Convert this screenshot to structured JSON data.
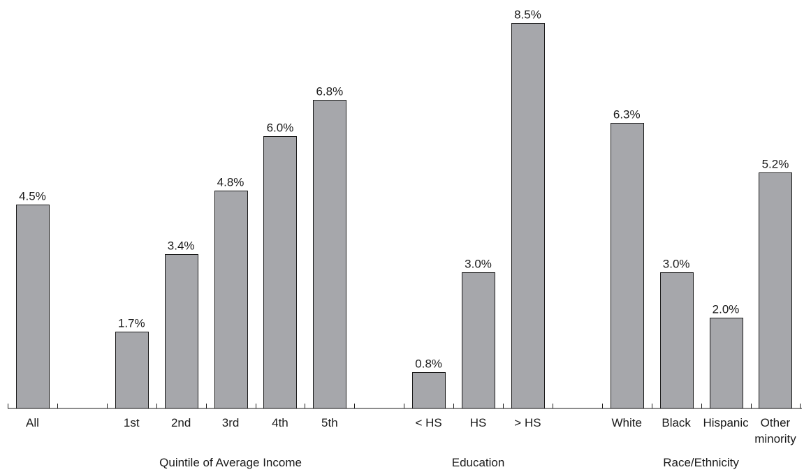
{
  "chart_data": {
    "type": "bar",
    "title": "",
    "xlabel": "",
    "ylabel": "",
    "ylim": [
      0,
      8.8
    ],
    "grid": false,
    "bar_color": "#a6a7ab",
    "bar_edge_color": "#1a1a1a",
    "value_format": "percent_1dp",
    "slots": [
      "All",
      "",
      "1st",
      "2nd",
      "3rd",
      "4th",
      "5th",
      "",
      "< HS",
      "HS",
      "> HS",
      "",
      "White",
      "Black",
      "Hispanic",
      "Other minority"
    ],
    "bars": [
      {
        "slot": 0,
        "category": "All",
        "tick_label": [
          "All"
        ],
        "value": 4.5,
        "label": "4.5%"
      },
      {
        "slot": 2,
        "category": "1st",
        "tick_label": [
          "1st"
        ],
        "value": 1.7,
        "label": "1.7%"
      },
      {
        "slot": 3,
        "category": "2nd",
        "tick_label": [
          "2nd"
        ],
        "value": 3.4,
        "label": "3.4%"
      },
      {
        "slot": 4,
        "category": "3rd",
        "tick_label": [
          "3rd"
        ],
        "value": 4.8,
        "label": "4.8%"
      },
      {
        "slot": 5,
        "category": "4th",
        "tick_label": [
          "4th"
        ],
        "value": 6.0,
        "label": "6.0%"
      },
      {
        "slot": 6,
        "category": "5th",
        "tick_label": [
          "5th"
        ],
        "value": 6.8,
        "label": "6.8%"
      },
      {
        "slot": 8,
        "category": "< HS",
        "tick_label": [
          "< HS"
        ],
        "value": 0.8,
        "label": "0.8%"
      },
      {
        "slot": 9,
        "category": "HS",
        "tick_label": [
          "HS"
        ],
        "value": 3.0,
        "label": "3.0%"
      },
      {
        "slot": 10,
        "category": "> HS",
        "tick_label": [
          "> HS"
        ],
        "value": 8.5,
        "label": "8.5%"
      },
      {
        "slot": 12,
        "category": "White",
        "tick_label": [
          "White"
        ],
        "value": 6.3,
        "label": "6.3%"
      },
      {
        "slot": 13,
        "category": "Black",
        "tick_label": [
          "Black"
        ],
        "value": 3.0,
        "label": "3.0%"
      },
      {
        "slot": 14,
        "category": "Hispanic",
        "tick_label": [
          "Hispanic"
        ],
        "value": 2.0,
        "label": "2.0%"
      },
      {
        "slot": 15,
        "category": "Other minority",
        "tick_label": [
          "Other",
          "minority"
        ],
        "value": 5.2,
        "label": "5.2%"
      }
    ],
    "groups": [
      {
        "name": "Quintile of Average Income",
        "slots": [
          2,
          6
        ]
      },
      {
        "name": "Education",
        "slots": [
          8,
          10
        ]
      },
      {
        "name": "Race/Ethnicity",
        "slots": [
          12,
          15
        ]
      }
    ]
  }
}
